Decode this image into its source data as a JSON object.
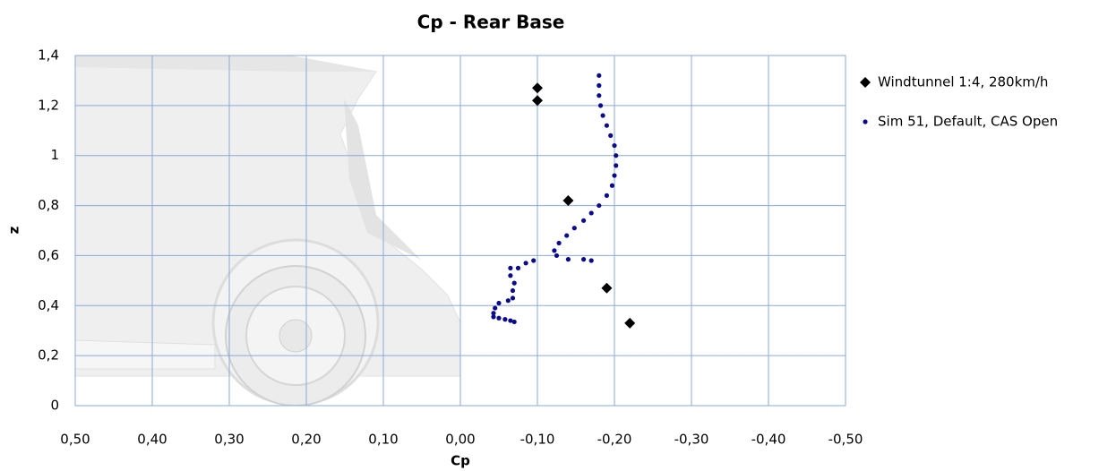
{
  "chart_data": {
    "type": "scatter",
    "title": "Cp - Rear Base",
    "x_label": "Cp",
    "y_label": "z",
    "xlim": [
      0.5,
      -0.5
    ],
    "ylim": [
      0,
      1.4
    ],
    "xticks": [
      {
        "value": 0.5,
        "label": "0,50"
      },
      {
        "value": 0.4,
        "label": "0,40"
      },
      {
        "value": 0.3,
        "label": "0,30"
      },
      {
        "value": 0.2,
        "label": "0,20"
      },
      {
        "value": 0.1,
        "label": "0,10"
      },
      {
        "value": 0,
        "label": "0,00"
      },
      {
        "value": -0.1,
        "label": "-0,10"
      },
      {
        "value": -0.2,
        "label": "-0,20"
      },
      {
        "value": -0.3,
        "label": "-0,30"
      },
      {
        "value": -0.4,
        "label": "-0,40"
      },
      {
        "value": -0.5,
        "label": "-0,50"
      }
    ],
    "yticks": [
      0,
      {
        "value": 0.2,
        "label": "0,2"
      },
      {
        "value": 0.4,
        "label": "0,4"
      },
      {
        "value": 0.6,
        "label": "0,6"
      },
      {
        "value": 0.8,
        "label": "0,8"
      },
      1,
      {
        "value": 1.2,
        "label": "1,2"
      },
      {
        "value": 1.4,
        "label": "1,4"
      }
    ],
    "grid": true,
    "legend": "right",
    "series": [
      {
        "name": "Windtunnel 1:4, 280km/h",
        "color": "#000000",
        "marker": "diamond",
        "x": [
          -0.1,
          -0.1,
          -0.14,
          -0.19,
          -0.22
        ],
        "values": [
          1.27,
          1.22,
          0.82,
          0.47,
          0.33
        ]
      },
      {
        "name": "Sim 51, Default, CAS Open",
        "color": "#0a0a8c",
        "marker": "dot",
        "x": [
          -0.18,
          -0.18,
          -0.18,
          -0.182,
          -0.185,
          -0.19,
          -0.195,
          -0.2,
          -0.202,
          -0.202,
          -0.2,
          -0.197,
          -0.19,
          -0.18,
          -0.17,
          -0.16,
          -0.148,
          -0.138,
          -0.128,
          -0.122,
          -0.125,
          -0.14,
          -0.16,
          -0.17,
          -0.095,
          -0.085,
          -0.075,
          -0.065,
          -0.065,
          -0.07,
          -0.068,
          -0.068,
          -0.062,
          -0.05,
          -0.045,
          -0.043,
          -0.043,
          -0.05,
          -0.058,
          -0.065,
          -0.07
        ],
        "values": [
          1.32,
          1.28,
          1.24,
          1.2,
          1.16,
          1.12,
          1.08,
          1.04,
          1,
          0.96,
          0.92,
          0.88,
          0.84,
          0.8,
          0.77,
          0.74,
          0.71,
          0.68,
          0.65,
          0.62,
          0.6,
          0.585,
          0.585,
          0.58,
          0.58,
          0.57,
          0.55,
          0.55,
          0.52,
          0.49,
          0.46,
          0.43,
          0.42,
          0.41,
          0.39,
          0.37,
          0.355,
          0.35,
          0.345,
          0.34,
          0.335
        ]
      }
    ]
  }
}
